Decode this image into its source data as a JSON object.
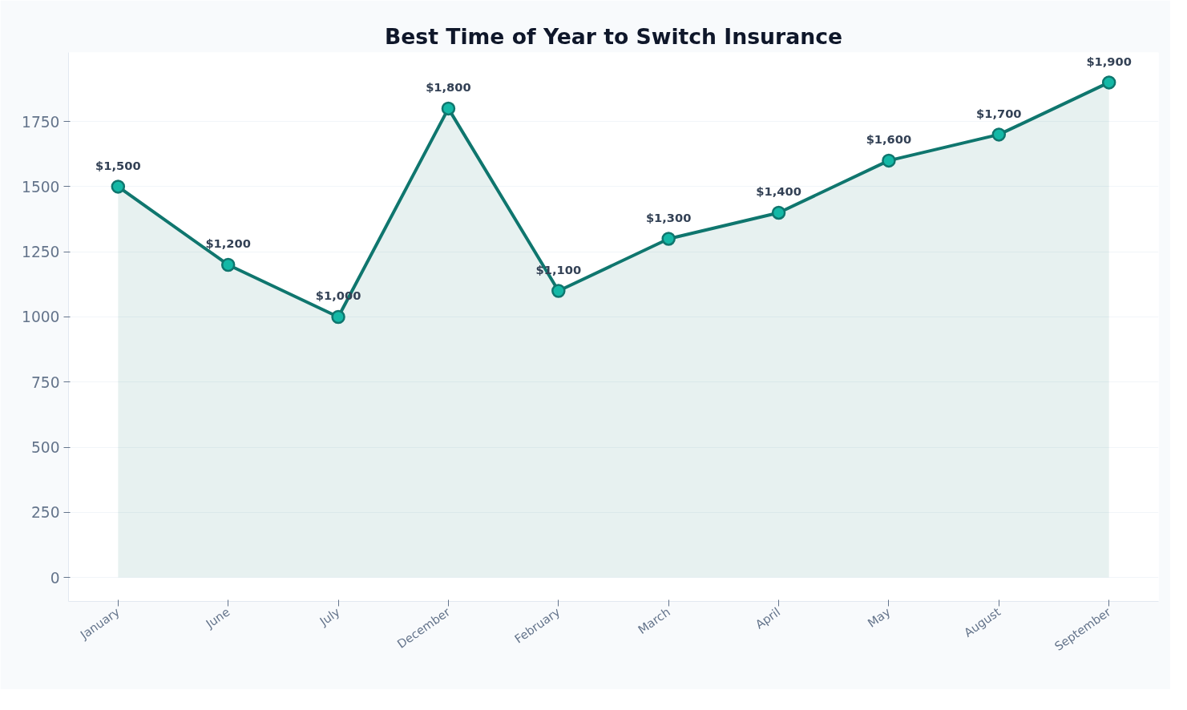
{
  "chart_data": {
    "type": "area",
    "title": "Best Time of Year to Switch Insurance",
    "categories": [
      "January",
      "June",
      "July",
      "December",
      "February",
      "March",
      "April",
      "May",
      "August",
      "September"
    ],
    "series": [
      {
        "color": "#0f766e",
        "values": [
          1500,
          1200,
          1000,
          1800,
          1100,
          1300,
          1400,
          1600,
          1700,
          1900
        ],
        "value_labels": [
          "$1,500",
          "$1,200",
          "$1,000",
          "$1,800",
          "$1,100",
          "$1,300",
          "$1,400",
          "$1,600",
          "$1,700",
          "$1,900"
        ]
      }
    ],
    "ylim": [
      -92,
      2015
    ],
    "yticks": [
      0,
      250,
      500,
      750,
      1000,
      1250,
      1500,
      1750
    ],
    "grid": "y",
    "marker": "circle",
    "line_style": "solid"
  }
}
